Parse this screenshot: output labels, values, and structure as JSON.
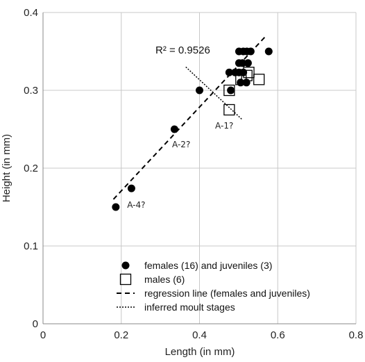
{
  "chart_data": {
    "type": "scatter",
    "xlabel": "Length (in mm)",
    "ylabel": "Height (in mm)",
    "xlim": [
      0,
      0.8
    ],
    "ylim": [
      0,
      0.4
    ],
    "x_ticks": [
      "0",
      "0.2",
      "0.4",
      "0.6",
      "0.8"
    ],
    "y_ticks": [
      "0",
      "0.1",
      "0.2",
      "0.3",
      "0.4"
    ],
    "grid": true,
    "r_squared_label": "R² = 0.9526",
    "series": [
      {
        "name": "females (16) and juveniles (3)",
        "marker": "filled-circle",
        "color": "#000000",
        "points": [
          [
            0.186,
            0.15
          ],
          [
            0.226,
            0.174
          ],
          [
            0.336,
            0.25
          ],
          [
            0.4,
            0.3
          ],
          [
            0.476,
            0.323
          ],
          [
            0.491,
            0.323
          ],
          [
            0.501,
            0.323
          ],
          [
            0.512,
            0.323
          ],
          [
            0.501,
            0.335
          ],
          [
            0.51,
            0.335
          ],
          [
            0.524,
            0.335
          ],
          [
            0.501,
            0.35
          ],
          [
            0.512,
            0.35
          ],
          [
            0.521,
            0.35
          ],
          [
            0.531,
            0.35
          ],
          [
            0.577,
            0.35
          ],
          [
            0.48,
            0.3
          ],
          [
            0.52,
            0.31
          ],
          [
            0.505,
            0.31
          ]
        ]
      },
      {
        "name": "males (6)",
        "marker": "open-square",
        "color": "#000000",
        "points": [
          [
            0.476,
            0.275
          ],
          [
            0.476,
            0.3
          ],
          [
            0.506,
            0.314
          ],
          [
            0.521,
            0.319
          ],
          [
            0.526,
            0.323
          ],
          [
            0.552,
            0.314
          ]
        ]
      },
      {
        "name": "regression line (females and juveniles)",
        "style": "dashed",
        "color": "#000000",
        "points": [
          [
            0.18,
            0.16
          ],
          [
            0.57,
            0.37
          ]
        ]
      },
      {
        "name": "inferred moult stages",
        "style": "dotted",
        "color": "#000000",
        "points": [
          [
            0.365,
            0.33
          ],
          [
            0.51,
            0.262
          ]
        ]
      }
    ],
    "annotations": [
      {
        "text": "A-4?",
        "x": 0.215,
        "y": 0.149
      },
      {
        "text": "A-2?",
        "x": 0.33,
        "y": 0.227
      },
      {
        "text": "A-1?",
        "x": 0.44,
        "y": 0.251
      }
    ],
    "legend_position": "bottom-right"
  }
}
